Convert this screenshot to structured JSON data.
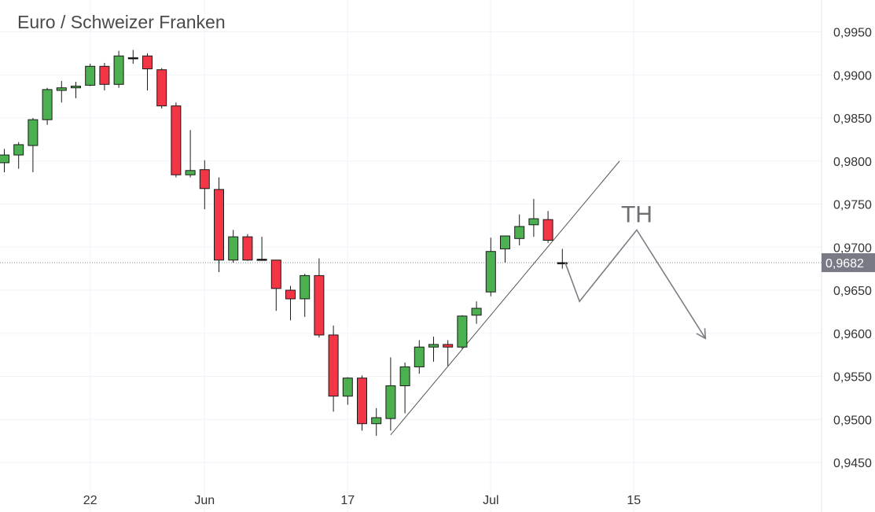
{
  "chart_data": {
    "type": "candlestick",
    "title": "Euro / Schweizer Franken",
    "y_ticks": [
      "0,9950",
      "0,9900",
      "0,9850",
      "0,9800",
      "0,9750",
      "0,9700",
      "0,9650",
      "0,9600",
      "0,9550",
      "0,9500",
      "0,9450"
    ],
    "ylim": [
      0.941,
      0.996
    ],
    "x_labels": [
      {
        "text": "22",
        "index": 6
      },
      {
        "text": "Jun",
        "index": 14
      },
      {
        "text": "17",
        "index": 24
      },
      {
        "text": "Jul",
        "index": 34
      },
      {
        "text": "15",
        "index": 44
      }
    ],
    "last_price": 0.9682,
    "last_price_label": "0,9682",
    "candles": [
      {
        "o": 0.9798,
        "h": 0.9814,
        "l": 0.9787,
        "c": 0.9807
      },
      {
        "o": 0.9807,
        "h": 0.9822,
        "l": 0.9791,
        "c": 0.9819
      },
      {
        "o": 0.9818,
        "h": 0.985,
        "l": 0.9787,
        "c": 0.9848
      },
      {
        "o": 0.9848,
        "h": 0.9885,
        "l": 0.9842,
        "c": 0.9883
      },
      {
        "o": 0.9882,
        "h": 0.9893,
        "l": 0.9868,
        "c": 0.9885
      },
      {
        "o": 0.9885,
        "h": 0.9892,
        "l": 0.9873,
        "c": 0.9887
      },
      {
        "o": 0.9888,
        "h": 0.9913,
        "l": 0.9887,
        "c": 0.991
      },
      {
        "o": 0.991,
        "h": 0.9914,
        "l": 0.9882,
        "c": 0.9889
      },
      {
        "o": 0.9889,
        "h": 0.9928,
        "l": 0.9885,
        "c": 0.9922
      },
      {
        "o": 0.992,
        "h": 0.9929,
        "l": 0.9913,
        "c": 0.992
      },
      {
        "o": 0.9922,
        "h": 0.9925,
        "l": 0.9882,
        "c": 0.9907
      },
      {
        "o": 0.9906,
        "h": 0.9908,
        "l": 0.9861,
        "c": 0.9864
      },
      {
        "o": 0.9864,
        "h": 0.9868,
        "l": 0.9781,
        "c": 0.9784
      },
      {
        "o": 0.9784,
        "h": 0.9836,
        "l": 0.9781,
        "c": 0.9789
      },
      {
        "o": 0.979,
        "h": 0.9801,
        "l": 0.9744,
        "c": 0.9768
      },
      {
        "o": 0.9767,
        "h": 0.9781,
        "l": 0.9671,
        "c": 0.9685
      },
      {
        "o": 0.9685,
        "h": 0.972,
        "l": 0.9682,
        "c": 0.9712
      },
      {
        "o": 0.9712,
        "h": 0.9715,
        "l": 0.9684,
        "c": 0.9685
      },
      {
        "o": 0.9686,
        "h": 0.9712,
        "l": 0.9685,
        "c": 0.9686
      },
      {
        "o": 0.9685,
        "h": 0.9685,
        "l": 0.9626,
        "c": 0.9652
      },
      {
        "o": 0.965,
        "h": 0.9655,
        "l": 0.9615,
        "c": 0.964
      },
      {
        "o": 0.964,
        "h": 0.9669,
        "l": 0.9619,
        "c": 0.9667
      },
      {
        "o": 0.9667,
        "h": 0.9687,
        "l": 0.9595,
        "c": 0.9598
      },
      {
        "o": 0.9598,
        "h": 0.9609,
        "l": 0.9509,
        "c": 0.9527
      },
      {
        "o": 0.9527,
        "h": 0.9549,
        "l": 0.9517,
        "c": 0.9548
      },
      {
        "o": 0.9548,
        "h": 0.9551,
        "l": 0.9487,
        "c": 0.9495
      },
      {
        "o": 0.9495,
        "h": 0.9513,
        "l": 0.9481,
        "c": 0.9502
      },
      {
        "o": 0.9501,
        "h": 0.9572,
        "l": 0.9487,
        "c": 0.9539
      },
      {
        "o": 0.9539,
        "h": 0.9566,
        "l": 0.9507,
        "c": 0.9561
      },
      {
        "o": 0.9561,
        "h": 0.9592,
        "l": 0.9553,
        "c": 0.9584
      },
      {
        "o": 0.9584,
        "h": 0.9596,
        "l": 0.9567,
        "c": 0.9587
      },
      {
        "o": 0.9587,
        "h": 0.9592,
        "l": 0.9562,
        "c": 0.9584
      },
      {
        "o": 0.9584,
        "h": 0.9621,
        "l": 0.9582,
        "c": 0.962
      },
      {
        "o": 0.9621,
        "h": 0.9637,
        "l": 0.9611,
        "c": 0.9629
      },
      {
        "o": 0.9648,
        "h": 0.9711,
        "l": 0.9643,
        "c": 0.9695
      },
      {
        "o": 0.9698,
        "h": 0.9713,
        "l": 0.9682,
        "c": 0.9713
      },
      {
        "o": 0.971,
        "h": 0.9738,
        "l": 0.9702,
        "c": 0.9724
      },
      {
        "o": 0.9726,
        "h": 0.9756,
        "l": 0.9712,
        "c": 0.9733
      },
      {
        "o": 0.9732,
        "h": 0.9742,
        "l": 0.9705,
        "c": 0.9708
      },
      {
        "o": 0.9682,
        "h": 0.9698,
        "l": 0.9675,
        "c": 0.9682
      }
    ],
    "trendline": {
      "from": {
        "index": 27,
        "price": 0.9482
      },
      "to": {
        "index": 43,
        "price": 0.98
      }
    },
    "projection": [
      {
        "index": 39.2,
        "price": 0.9682
      },
      {
        "index": 40.2,
        "price": 0.9637
      },
      {
        "index": 44.2,
        "price": 0.972
      },
      {
        "index": 49.0,
        "price": 0.9594
      }
    ],
    "annotation": {
      "text": "TH",
      "index": 44.2,
      "price": 0.9738
    },
    "colors": {
      "up": "#4caf50",
      "down": "#f23645",
      "candle_border": "#1a1a1a",
      "grid": "#f0f3fa",
      "line": "#555555",
      "projection": "#7b7e84",
      "price_label_bg": "#787b86",
      "axis_border": "#e0e3eb",
      "text": "#333333",
      "title": "#4a4a4a"
    }
  }
}
